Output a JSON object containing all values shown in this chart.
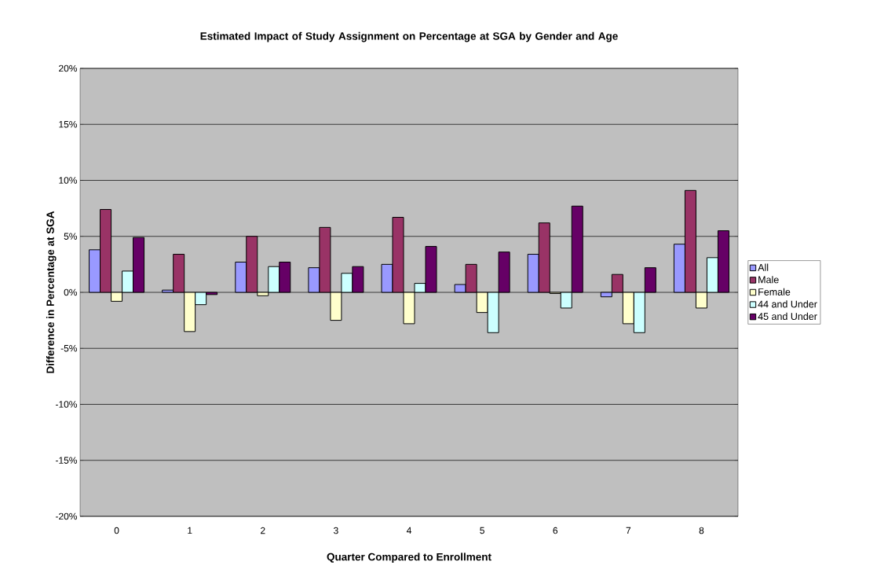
{
  "chart_data": {
    "type": "bar",
    "title": "Estimated Impact of Study Assignment on Percentage at SGA by Gender and Age",
    "xlabel": "Quarter Compared to Enrollment",
    "ylabel": "Difference in Percentage at SGA",
    "categories": [
      "0",
      "1",
      "2",
      "3",
      "4",
      "5",
      "6",
      "7",
      "8"
    ],
    "series": [
      {
        "name": "All",
        "color": "#9999ff",
        "values": [
          3.8,
          0.2,
          2.7,
          2.2,
          2.5,
          0.7,
          3.4,
          -0.4,
          4.3
        ]
      },
      {
        "name": "Male",
        "color": "#993366",
        "values": [
          7.4,
          3.4,
          5.0,
          5.8,
          6.7,
          2.5,
          6.2,
          1.6,
          9.1
        ]
      },
      {
        "name": "Female",
        "color": "#ffffcc",
        "values": [
          -0.8,
          -3.5,
          -0.3,
          -2.5,
          -2.8,
          -1.8,
          -0.1,
          -2.8,
          -1.4
        ]
      },
      {
        "name": "44 and Under",
        "color": "#ccffff",
        "values": [
          1.9,
          -1.1,
          2.3,
          1.7,
          0.8,
          -3.6,
          -1.4,
          -3.6,
          3.1
        ]
      },
      {
        "name": "45 and Under",
        "color": "#660066",
        "values": [
          4.9,
          -0.2,
          2.7,
          2.3,
          4.1,
          3.6,
          7.7,
          2.2,
          5.5
        ]
      }
    ],
    "ylim": [
      -20,
      20
    ],
    "yticks": [
      {
        "value": -20,
        "label": "-20%"
      },
      {
        "value": -15,
        "label": "-15%"
      },
      {
        "value": -10,
        "label": "-10%"
      },
      {
        "value": -5,
        "label": "-5%"
      },
      {
        "value": 0,
        "label": "0%"
      },
      {
        "value": 5,
        "label": "5%"
      },
      {
        "value": 10,
        "label": "10%"
      },
      {
        "value": 15,
        "label": "15%"
      },
      {
        "value": 20,
        "label": "20%"
      }
    ],
    "grid": "y",
    "legend": "right"
  }
}
